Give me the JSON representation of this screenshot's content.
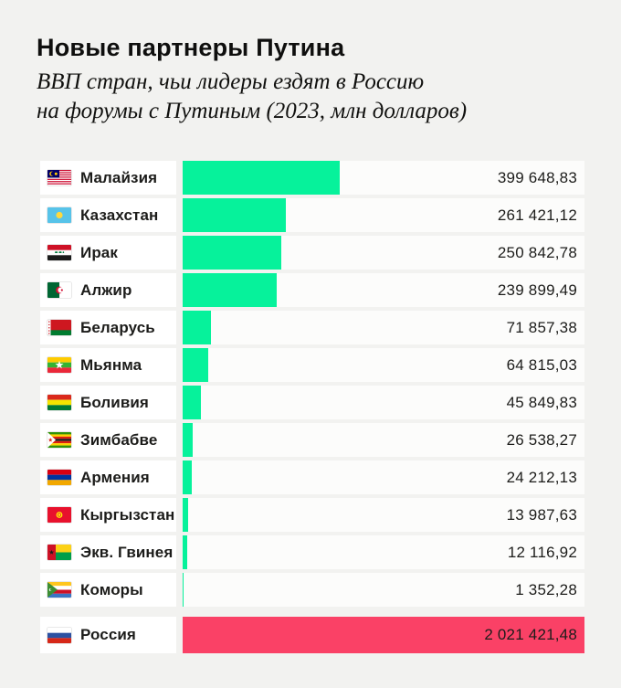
{
  "header": {
    "title": "Новые партнеры Путина",
    "subtitle_line1": "ВВП стран, чьи лидеры ездят в Россию",
    "subtitle_line2": "на форумы с Путиным (2023, млн долларов)"
  },
  "colors": {
    "bar_green": "#06F29B",
    "bar_pink": "#FA4166",
    "background": "#F2F2F0",
    "row_background": "#FFFFFF",
    "text": "#1C1C1A"
  },
  "chart_data": {
    "type": "bar",
    "orientation": "horizontal",
    "title": "Новые партнеры Путина",
    "subtitle": "ВВП стран, чьи лидеры ездят в Россию на форумы с Путиным (2023, млн долларов)",
    "unit": "млн долларов",
    "year": "2023",
    "rows": [
      {
        "country": "Малайзия",
        "flag": "malaysia",
        "value": 399648.83,
        "value_label": "399 648,83"
      },
      {
        "country": "Казахстан",
        "flag": "kazakhstan",
        "value": 261421.12,
        "value_label": "261 421,12"
      },
      {
        "country": "Ирак",
        "flag": "iraq",
        "value": 250842.78,
        "value_label": "250 842,78"
      },
      {
        "country": "Алжир",
        "flag": "algeria",
        "value": 239899.49,
        "value_label": "239 899,49"
      },
      {
        "country": "Беларусь",
        "flag": "belarus",
        "value": 71857.38,
        "value_label": "71 857,38"
      },
      {
        "country": "Мьянма",
        "flag": "myanmar",
        "value": 64815.03,
        "value_label": "64 815,03"
      },
      {
        "country": "Боливия",
        "flag": "bolivia",
        "value": 45849.83,
        "value_label": "45 849,83"
      },
      {
        "country": "Зимбабве",
        "flag": "zimbabwe",
        "value": 26538.27,
        "value_label": "26 538,27"
      },
      {
        "country": "Армения",
        "flag": "armenia",
        "value": 24212.13,
        "value_label": "24 212,13"
      },
      {
        "country": "Кыргызстан",
        "flag": "kyrgyzstan",
        "value": 13987.63,
        "value_label": "13 987,63"
      },
      {
        "country": "Экв. Гвинея",
        "flag": "guinea-bissau",
        "value": 12116.92,
        "value_label": "12 116,92"
      },
      {
        "country": "Коморы",
        "flag": "comoros",
        "value": 1352.28,
        "value_label": "1 352,28"
      }
    ],
    "highlight_row": {
      "country": "Россия",
      "flag": "russia",
      "value": 2021421.48,
      "value_label": "2 021 421,48"
    }
  }
}
